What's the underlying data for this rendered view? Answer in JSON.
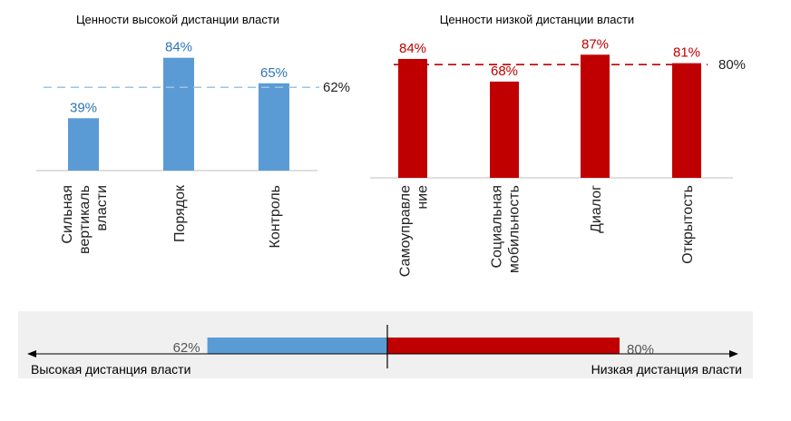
{
  "colors": {
    "high": "#5b9bd5",
    "high_label": "#2e75b6",
    "low": "#c00000",
    "low_label": "#c00000",
    "text": "#222222",
    "axis": "#bfbfbf",
    "band_bg": "#f0f0f0"
  },
  "chart_data": [
    {
      "type": "bar",
      "title": "Ценности высокой дистанции власти",
      "categories": [
        [
          "Сильная",
          "вертикаль",
          "власти"
        ],
        [
          "Порядок"
        ],
        [
          "Контроль"
        ]
      ],
      "values": [
        39,
        84,
        65
      ],
      "data_labels": [
        "39%",
        "84%",
        "65%"
      ],
      "reference_line": {
        "value": 62,
        "label": "62%",
        "style": "dashed"
      },
      "ylim": [
        0,
        100
      ]
    },
    {
      "type": "bar",
      "title": "Ценности низкой дистанции власти",
      "categories": [
        [
          "Самоуправле",
          "ние"
        ],
        [
          "Социальная",
          "мобильность"
        ],
        [
          "Диалог"
        ],
        [
          "Открытость"
        ]
      ],
      "values": [
        84,
        68,
        87,
        81
      ],
      "data_labels": [
        "84%",
        "68%",
        "87%",
        "81%"
      ],
      "reference_line": {
        "value": 80,
        "label": "80%",
        "style": "dashed"
      },
      "ylim": [
        0,
        100
      ]
    },
    {
      "type": "bar",
      "title": "",
      "orientation": "horizontal",
      "left_label": "Высокая дистанция власти",
      "right_label": "Низкая дистанция власти",
      "left_value": 62,
      "left_value_label": "62%",
      "right_value": 80,
      "right_value_label": "80%"
    }
  ]
}
